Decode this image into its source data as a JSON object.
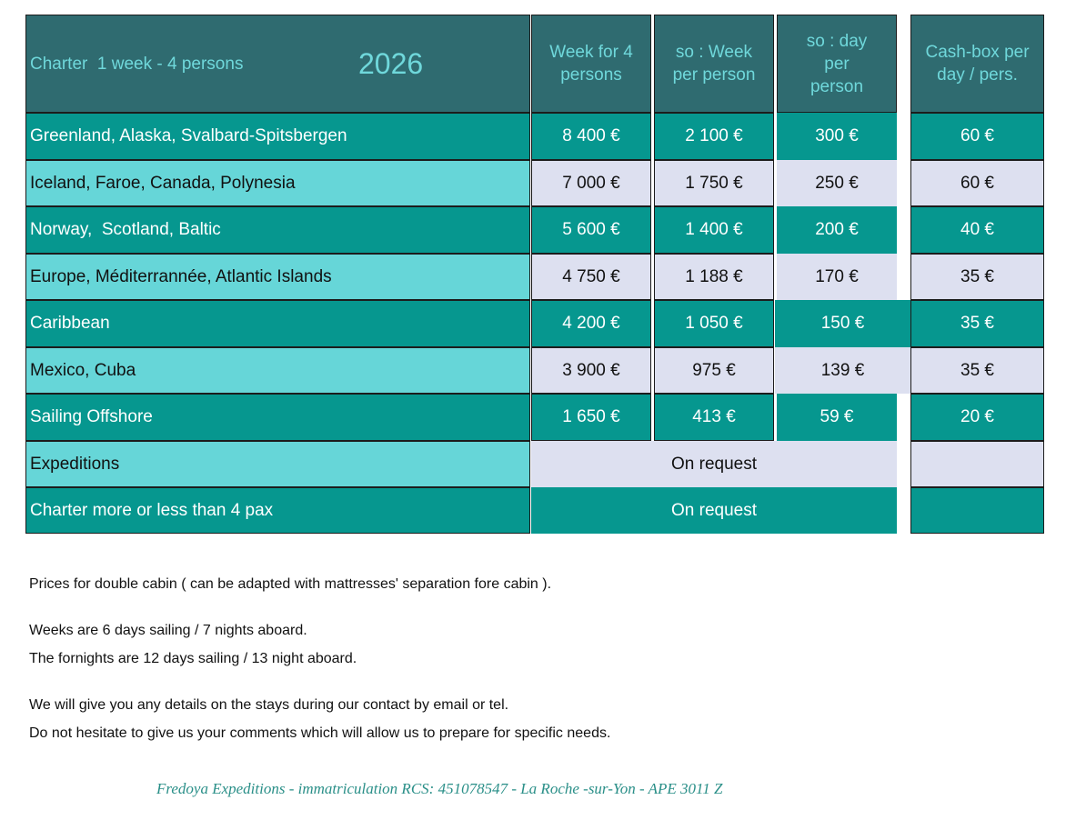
{
  "header": {
    "title": "Charter  1 week - 4 persons",
    "year": "2026",
    "col_week4": "Week for 4 persons",
    "col_week_person": "so : Week per person",
    "col_day_person": "so : day per person",
    "col_cashbox": "Cash-box per day / pers."
  },
  "rows": [
    {
      "destination": "Greenland, Alaska, Svalbard-Spitsbergen",
      "week4": "8 400 €",
      "week_person": "2 100 €",
      "day_person": "300 €",
      "cashbox": "60 €"
    },
    {
      "destination": "Iceland, Faroe, Canada, Polynesia",
      "week4": "7 000 €",
      "week_person": "1 750 €",
      "day_person": "250 €",
      "cashbox": "60 €"
    },
    {
      "destination": "Norway,  Scotland, Baltic",
      "week4": "5 600 €",
      "week_person": "1 400 €",
      "day_person": "200 €",
      "cashbox": "40 €"
    },
    {
      "destination": "Europe, Méditerrannée, Atlantic Islands",
      "week4": "4 750 €",
      "week_person": "1 188 €",
      "day_person": "170 €",
      "cashbox": "35 €"
    },
    {
      "destination": "Caribbean",
      "week4": "4 200 €",
      "week_person": "1 050 €",
      "day_person": "150 €",
      "cashbox": "35 €"
    },
    {
      "destination": "Mexico, Cuba",
      "week4": "3 900 €",
      "week_person": "975 €",
      "day_person": "139 €",
      "cashbox": "35 €"
    },
    {
      "destination": "Sailing Offshore",
      "week4": "1 650 €",
      "week_person": "413 €",
      "day_person": "59 €",
      "cashbox": "20 €"
    }
  ],
  "special_rows": [
    {
      "destination": "Expeditions",
      "value": "On request"
    },
    {
      "destination": "Charter more or less than 4 pax",
      "value": "On request"
    }
  ],
  "notes": {
    "line1": "Prices for double cabin ( can be adapted with mattresses' separation  fore cabin ).",
    "line2": "Weeks are 6 days sailing / 7 nights aboard.",
    "line3": "The fornights are 12 days sailing / 13 night aboard.",
    "line4": "We will give you any details on the stays during our contact by email or tel.",
    "line5": "Do not hesitate to give us your comments which will allow us to prepare for specific needs."
  },
  "footer": "Fredoya Expeditions - immatriculation RCS: 451078547 - La Roche -sur-Yon - APE 3011 Z"
}
